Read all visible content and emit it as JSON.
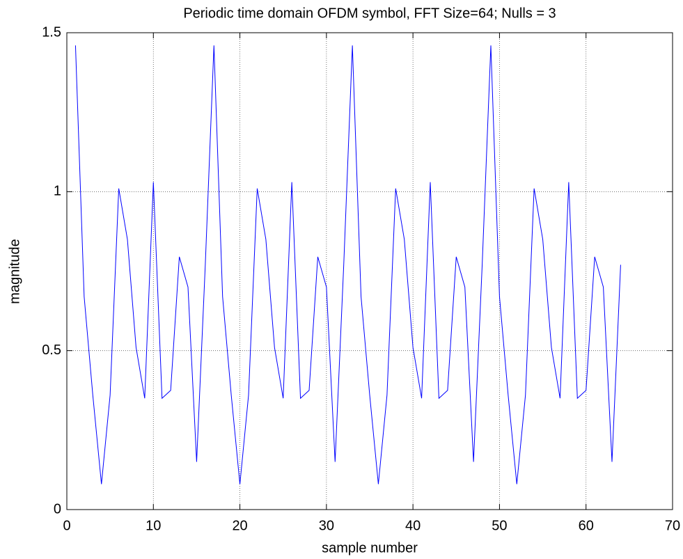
{
  "chart_data": {
    "type": "line",
    "title": "Periodic time domain OFDM symbol, FFT Size=64; Nulls = 3",
    "x_label": "sample number",
    "y_label": "magnitude",
    "x": [
      1,
      2,
      3,
      4,
      5,
      6,
      7,
      8,
      9,
      10,
      11,
      12,
      13,
      14,
      15,
      16,
      17,
      18,
      19,
      20,
      21,
      22,
      23,
      24,
      25,
      26,
      27,
      28,
      29,
      30,
      31,
      32,
      33,
      34,
      35,
      36,
      37,
      38,
      39,
      40,
      41,
      42,
      43,
      44,
      45,
      46,
      47,
      48,
      49,
      50,
      51,
      52,
      53,
      54,
      55,
      56,
      57,
      58,
      59,
      60,
      61,
      62,
      63,
      64
    ],
    "series": [
      {
        "name": "magnitude",
        "color": "#0000ff",
        "values": [
          1.46,
          0.67,
          0.36,
          0.08,
          0.36,
          1.01,
          0.85,
          0.51,
          0.35,
          1.03,
          0.35,
          0.375,
          0.795,
          0.7,
          0.15,
          0.77,
          1.46,
          0.67,
          0.36,
          0.08,
          0.36,
          1.01,
          0.85,
          0.51,
          0.35,
          1.03,
          0.35,
          0.375,
          0.795,
          0.7,
          0.15,
          0.77,
          1.46,
          0.67,
          0.36,
          0.08,
          0.36,
          1.01,
          0.85,
          0.51,
          0.35,
          1.03,
          0.35,
          0.375,
          0.795,
          0.7,
          0.15,
          0.77,
          1.46,
          0.67,
          0.36,
          0.08,
          0.36,
          1.01,
          0.85,
          0.51,
          0.35,
          1.03,
          0.35,
          0.375,
          0.795,
          0.7,
          0.15,
          0.77
        ]
      }
    ],
    "xlim": [
      0,
      70
    ],
    "ylim": [
      0,
      1.5
    ],
    "xticks": [
      0,
      10,
      20,
      30,
      40,
      50,
      60,
      70
    ],
    "yticks": [
      0,
      0.5,
      1,
      1.5
    ],
    "grid": true
  }
}
